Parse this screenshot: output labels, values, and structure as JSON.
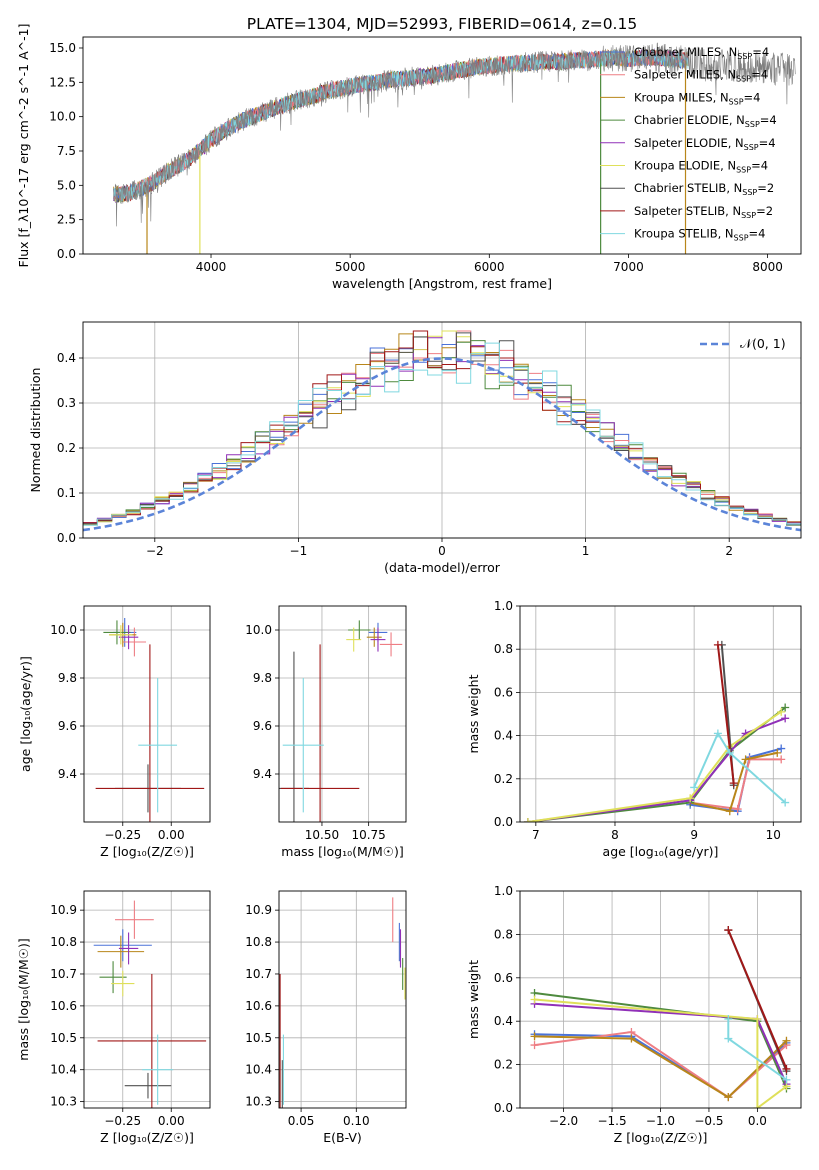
{
  "figure": {
    "title": "PLATE=1304, MJD=52993, FIBERID=0614, z=0.15"
  },
  "series": [
    {
      "name": "Chabrier MILES, N$_{SSP}$=4",
      "legend": "Chabrier MILES, N",
      "sub": "SSP",
      "tail": "=4",
      "color": "#4a72d8"
    },
    {
      "name": "Salpeter MILES, N$_{SSP}$=4",
      "legend": "Salpeter MILES, N",
      "sub": "SSP",
      "tail": "=4",
      "color": "#ee7e84"
    },
    {
      "name": "Kroupa MILES, N$_{SSP}$=4",
      "legend": "Kroupa MILES, N",
      "sub": "SSP",
      "tail": "=4",
      "color": "#b8861a"
    },
    {
      "name": "Chabrier ELODIE, N$_{SSP}$=4",
      "legend": "Chabrier ELODIE, N",
      "sub": "SSP",
      "tail": "=4",
      "color": "#4e8a3e"
    },
    {
      "name": "Salpeter ELODIE, N$_{SSP}$=4",
      "legend": "Salpeter ELODIE, N",
      "sub": "SSP",
      "tail": "=4",
      "color": "#9030b8"
    },
    {
      "name": "Kroupa ELODIE, N$_{SSP}$=4",
      "legend": "Kroupa ELODIE, N",
      "sub": "SSP",
      "tail": "=4",
      "color": "#dfe05a"
    },
    {
      "name": "Chabrier STELIB, N$_{SSP}$=2",
      "legend": "Chabrier STELIB, N",
      "sub": "SSP",
      "tail": "=2",
      "color": "#505050"
    },
    {
      "name": "Salpeter STELIB, N$_{SSP}$=2",
      "legend": "Salpeter STELIB, N",
      "sub": "SSP",
      "tail": "=2",
      "color": "#a01818"
    },
    {
      "name": "Kroupa STELIB, N$_{SSP}$=4",
      "legend": "Kroupa STELIB, N",
      "sub": "SSP",
      "tail": "=4",
      "color": "#80d8e0"
    }
  ],
  "chart_data": [
    {
      "id": "spectrum",
      "type": "line",
      "xlabel": "wavelength [Angstrom, rest frame]",
      "ylabel": "Flux [f_λ10^-17 erg cm^-2 s^-1 A^-1]",
      "xlim": [
        3080,
        8240
      ],
      "ylim": [
        0,
        15.8
      ],
      "xticks": [
        4000,
        5000,
        6000,
        7000,
        8000
      ],
      "yticks": [
        0.0,
        2.5,
        5.0,
        7.5,
        10.0,
        12.5,
        15.0
      ],
      "data_spectrum": {
        "name": "data",
        "color": "#808080",
        "x": [
          3300,
          3400,
          3500,
          3600,
          3700,
          3800,
          3900,
          4000,
          4100,
          4200,
          4300,
          4400,
          4500,
          4600,
          4700,
          4800,
          4900,
          5000,
          5100,
          5200,
          5300,
          5400,
          5500,
          5600,
          5700,
          5800,
          5900,
          6000,
          6100,
          6200,
          6300,
          6400,
          6500,
          6600,
          6700,
          6800,
          6900,
          7000,
          7100,
          7200,
          7300,
          7400,
          7500,
          7600,
          7700,
          7800,
          7900,
          8000,
          8100,
          8200
        ],
        "y": [
          4.3,
          4.4,
          4.8,
          5.3,
          6.1,
          6.6,
          7.4,
          8.3,
          9.0,
          9.6,
          10.0,
          10.4,
          10.8,
          11.1,
          11.4,
          11.7,
          12.0,
          12.2,
          12.4,
          12.5,
          12.7,
          12.8,
          12.9,
          13.0,
          13.2,
          13.4,
          13.6,
          13.7,
          13.8,
          13.9,
          13.9,
          14.0,
          14.0,
          14.1,
          14.1,
          14.2,
          14.3,
          14.2,
          14.3,
          14.3,
          14.2,
          14.1,
          13.9,
          13.6,
          13.8,
          13.7,
          13.6,
          13.6,
          13.5,
          13.4
        ]
      },
      "model_range": [
        3300,
        7430
      ],
      "drops": [
        {
          "series": 2,
          "at": 3540
        },
        {
          "series": 5,
          "at": 3920
        },
        {
          "series": 3,
          "at": 6800
        },
        {
          "series": 2,
          "at": 7410
        }
      ]
    },
    {
      "id": "residuals",
      "type": "area",
      "xlabel": "(data-model)/error",
      "ylabel": "Normed distribution",
      "xlim": [
        -2.5,
        2.5
      ],
      "ylim": [
        0,
        0.48
      ],
      "xticks": [
        -2,
        -1,
        0,
        1,
        2
      ],
      "yticks": [
        0.0,
        0.1,
        0.2,
        0.3,
        0.4
      ],
      "bins": {
        "start": -2.5,
        "width": 0.1,
        "count": 50
      },
      "gaussian_label": "𝒩(0, 1)",
      "gaussian_color": "#5b84d8"
    },
    {
      "id": "age-vs-Z",
      "type": "scatter",
      "xlabel": "Z [log₁₀(Z/Z☉)]",
      "ylabel": "age  [log₁₀(age/yr)]",
      "xlim": [
        -0.45,
        0.2
      ],
      "ylim": [
        9.2,
        10.1
      ],
      "xticks": [
        -0.25,
        0.0
      ],
      "yticks": [
        9.4,
        9.6,
        9.8,
        10.0
      ],
      "points": [
        {
          "s": 0,
          "x": -0.24,
          "y": 9.99,
          "xe": 0.06,
          "ye": 0.06
        },
        {
          "s": 1,
          "x": -0.19,
          "y": 9.95,
          "xe": 0.06,
          "ye": 0.06
        },
        {
          "s": 2,
          "x": -0.25,
          "y": 9.98,
          "xe": 0.07,
          "ye": 0.05
        },
        {
          "s": 3,
          "x": -0.28,
          "y": 9.99,
          "xe": 0.07,
          "ye": 0.05
        },
        {
          "s": 4,
          "x": -0.22,
          "y": 9.97,
          "xe": 0.05,
          "ye": 0.05
        },
        {
          "s": 5,
          "x": -0.26,
          "y": 9.98,
          "xe": 0.06,
          "ye": 0.04
        },
        {
          "s": 6,
          "x": -0.12,
          "y": 9.34,
          "xe": 0.17,
          "ye": 0.1
        },
        {
          "s": 7,
          "x": -0.11,
          "y": 9.34,
          "xe": 0.28,
          "ye": 0.6
        },
        {
          "s": 8,
          "x": -0.07,
          "y": 9.52,
          "xe": 0.1,
          "ye": 0.28
        }
      ]
    },
    {
      "id": "age-vs-mass",
      "type": "scatter",
      "xlabel": "mass [log₁₀(M/M☉)]",
      "ylabel": "",
      "xlim": [
        10.27,
        10.95
      ],
      "ylim": [
        9.2,
        10.1
      ],
      "xticks": [
        10.5,
        10.75
      ],
      "yticks": [
        9.4,
        9.6,
        9.8,
        10.0
      ],
      "points": [
        {
          "s": 0,
          "x": 10.8,
          "y": 9.99,
          "xe": 0.05,
          "ye": 0.04
        },
        {
          "s": 1,
          "x": 10.87,
          "y": 9.94,
          "xe": 0.06,
          "ye": 0.05
        },
        {
          "s": 2,
          "x": 10.78,
          "y": 9.97,
          "xe": 0.04,
          "ye": 0.04
        },
        {
          "s": 3,
          "x": 10.7,
          "y": 10.0,
          "xe": 0.06,
          "ye": 0.04
        },
        {
          "s": 4,
          "x": 10.8,
          "y": 9.96,
          "xe": 0.04,
          "ye": 0.05
        },
        {
          "s": 5,
          "x": 10.67,
          "y": 9.96,
          "xe": 0.04,
          "ye": 0.05
        },
        {
          "s": 6,
          "x": 10.35,
          "y": 9.34,
          "xe": 0.08,
          "ye": 0.57
        },
        {
          "s": 7,
          "x": 10.49,
          "y": 9.34,
          "xe": 0.21,
          "ye": 0.6
        },
        {
          "s": 8,
          "x": 10.4,
          "y": 9.52,
          "xe": 0.11,
          "ye": 0.28
        }
      ]
    },
    {
      "id": "mass-weight-vs-age",
      "type": "line",
      "xlabel": "age  [log₁₀(age/yr)]",
      "ylabel": "mass weight",
      "xlim": [
        6.8,
        10.35
      ],
      "ylim": [
        0,
        1.0
      ],
      "xticks": [
        7,
        8,
        9,
        10
      ],
      "yticks": [
        0.0,
        0.2,
        0.4,
        0.6,
        0.8,
        1.0
      ],
      "lines": [
        {
          "s": 0,
          "x": [
            8.95,
            9.55,
            9.7,
            10.1
          ],
          "y": [
            0.08,
            0.05,
            0.3,
            0.34
          ]
        },
        {
          "s": 1,
          "x": [
            8.95,
            9.55,
            9.7,
            10.1
          ],
          "y": [
            0.09,
            0.06,
            0.29,
            0.29
          ]
        },
        {
          "s": 2,
          "x": [
            8.95,
            9.45,
            9.65,
            10.05
          ],
          "y": [
            0.09,
            0.05,
            0.29,
            0.32
          ]
        },
        {
          "s": 3,
          "x": [
            6.9,
            8.95,
            9.45,
            10.15
          ],
          "y": [
            0.0,
            0.09,
            0.33,
            0.53
          ]
        },
        {
          "s": 4,
          "x": [
            6.9,
            8.95,
            9.65,
            10.15
          ],
          "y": [
            0.0,
            0.1,
            0.41,
            0.48
          ]
        },
        {
          "s": 5,
          "x": [
            6.9,
            8.95,
            9.45,
            10.1
          ],
          "y": [
            0.0,
            0.11,
            0.35,
            0.51
          ]
        },
        {
          "s": 6,
          "x": [
            9.35,
            9.5
          ],
          "y": [
            0.82,
            0.17
          ]
        },
        {
          "s": 7,
          "x": [
            9.3,
            9.5
          ],
          "y": [
            0.82,
            0.18
          ]
        },
        {
          "s": 8,
          "x": [
            9.0,
            9.3,
            9.45,
            10.15
          ],
          "y": [
            0.16,
            0.41,
            0.32,
            0.09
          ]
        }
      ]
    },
    {
      "id": "mass-vs-Z",
      "type": "scatter",
      "xlabel": "Z [log₁₀(Z/Z☉)]",
      "ylabel": "mass [log₁₀(M/M☉)]",
      "xlim": [
        -0.45,
        0.2
      ],
      "ylim": [
        10.28,
        10.96
      ],
      "xticks": [
        -0.25,
        0.0
      ],
      "yticks": [
        10.3,
        10.4,
        10.5,
        10.6,
        10.7,
        10.8,
        10.9
      ],
      "points": [
        {
          "s": 0,
          "x": -0.25,
          "y": 10.79,
          "xe": 0.15,
          "ye": 0.05
        },
        {
          "s": 1,
          "x": -0.19,
          "y": 10.87,
          "xe": 0.1,
          "ye": 0.06
        },
        {
          "s": 2,
          "x": -0.26,
          "y": 10.77,
          "xe": 0.12,
          "ye": 0.05
        },
        {
          "s": 3,
          "x": -0.3,
          "y": 10.69,
          "xe": 0.07,
          "ye": 0.05
        },
        {
          "s": 4,
          "x": -0.22,
          "y": 10.78,
          "xe": 0.05,
          "ye": 0.05
        },
        {
          "s": 5,
          "x": -0.25,
          "y": 10.67,
          "xe": 0.06,
          "ye": 0.04
        },
        {
          "s": 6,
          "x": -0.12,
          "y": 10.35,
          "xe": 0.12,
          "ye": 0.04
        },
        {
          "s": 7,
          "x": -0.1,
          "y": 10.49,
          "xe": 0.28,
          "ye": 0.21
        },
        {
          "s": 8,
          "x": -0.07,
          "y": 10.4,
          "xe": 0.08,
          "ye": 0.11
        }
      ]
    },
    {
      "id": "mass-vs-EBV",
      "type": "scatter",
      "xlabel": "E(B-V)",
      "ylabel": "",
      "xlim": [
        0.03,
        0.145
      ],
      "ylim": [
        10.28,
        10.96
      ],
      "xticks": [
        0.05,
        0.1
      ],
      "yticks": [
        10.3,
        10.4,
        10.5,
        10.6,
        10.7,
        10.8,
        10.9
      ],
      "points": [
        {
          "s": 0,
          "x": 0.139,
          "y": 10.8,
          "xe": 0.0,
          "ye": 0.06
        },
        {
          "s": 1,
          "x": 0.133,
          "y": 10.87,
          "xe": 0.0,
          "ye": 0.07
        },
        {
          "s": 2,
          "x": 0.14,
          "y": 10.78,
          "xe": 0.0,
          "ye": 0.05
        },
        {
          "s": 3,
          "x": 0.142,
          "y": 10.7,
          "xe": 0.0,
          "ye": 0.05
        },
        {
          "s": 4,
          "x": 0.14,
          "y": 10.78,
          "xe": 0.0,
          "ye": 0.06
        },
        {
          "s": 5,
          "x": 0.144,
          "y": 10.67,
          "xe": 0.0,
          "ye": 0.05
        },
        {
          "s": 6,
          "x": 0.033,
          "y": 10.35,
          "xe": 0.0,
          "ye": 0.08
        },
        {
          "s": 7,
          "x": 0.031,
          "y": 10.49,
          "xe": 0.0,
          "ye": 0.21
        },
        {
          "s": 8,
          "x": 0.034,
          "y": 10.4,
          "xe": 0.0,
          "ye": 0.11
        }
      ]
    },
    {
      "id": "mass-weight-vs-Z",
      "type": "line",
      "xlabel": "Z [log₁₀(Z/Z☉)]",
      "ylabel": "mass weight",
      "xlim": [
        -2.45,
        0.45
      ],
      "ylim": [
        0,
        1.0
      ],
      "xticks": [
        -2.0,
        -1.5,
        -1.0,
        -0.5,
        0.0
      ],
      "yticks": [
        0.0,
        0.2,
        0.4,
        0.6,
        0.8,
        1.0
      ],
      "lines": [
        {
          "s": 0,
          "x": [
            -2.3,
            -1.3,
            -0.3,
            0.3
          ],
          "y": [
            0.34,
            0.33,
            0.05,
            0.3
          ]
        },
        {
          "s": 1,
          "x": [
            -2.3,
            -1.3,
            -0.3,
            0.3
          ],
          "y": [
            0.29,
            0.35,
            0.05,
            0.29
          ]
        },
        {
          "s": 2,
          "x": [
            -2.3,
            -1.3,
            -0.3,
            0.3
          ],
          "y": [
            0.33,
            0.32,
            0.05,
            0.31
          ]
        },
        {
          "s": 3,
          "x": [
            -2.3,
            0.0,
            0.3
          ],
          "y": [
            0.53,
            0.4,
            0.09
          ]
        },
        {
          "s": 4,
          "x": [
            -2.3,
            0.0,
            0.3
          ],
          "y": [
            0.48,
            0.41,
            0.11
          ]
        },
        {
          "s": 5,
          "x": [
            -2.3,
            0.0,
            0.0,
            0.3
          ],
          "y": [
            0.5,
            0.41,
            0.0,
            0.1
          ]
        },
        {
          "s": 6,
          "x": [
            -0.3,
            0.3
          ],
          "y": [
            0.82,
            0.17
          ]
        },
        {
          "s": 7,
          "x": [
            -0.3,
            0.3
          ],
          "y": [
            0.82,
            0.18
          ]
        },
        {
          "s": 8,
          "x": [
            -0.3,
            -0.3,
            0.3
          ],
          "y": [
            0.41,
            0.32,
            0.13
          ]
        }
      ]
    }
  ]
}
